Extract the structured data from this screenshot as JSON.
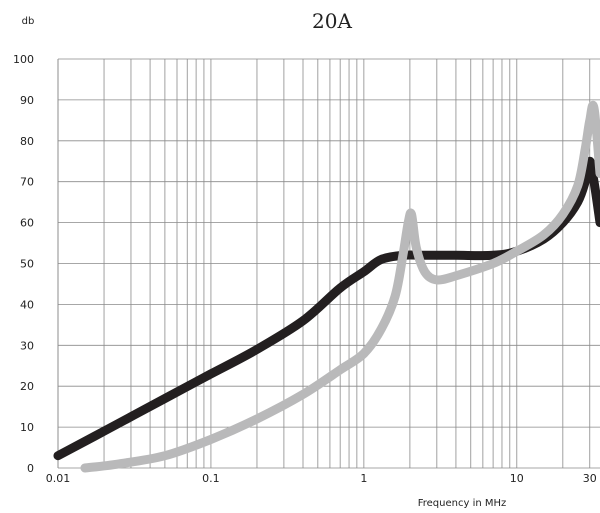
{
  "chart_data": {
    "type": "line",
    "title": "20A",
    "ylabel": "db",
    "xlabel": "Frequency in MHz",
    "x_scale": "log",
    "xlim": [
      0.01,
      35
    ],
    "ylim": [
      0,
      100
    ],
    "grid": true,
    "x_tick_labels": [
      "0.01",
      "0.1",
      "1",
      "10",
      "30"
    ],
    "x_ticks": [
      0.01,
      0.1,
      1,
      10,
      30
    ],
    "y_ticks": [
      0,
      10,
      20,
      30,
      40,
      50,
      60,
      70,
      80,
      90,
      100
    ],
    "series": [
      {
        "color": "#231f20",
        "x": [
          0.01,
          0.02,
          0.05,
          0.1,
          0.2,
          0.4,
          0.7,
          1.0,
          1.3,
          1.8,
          2.5,
          4,
          7,
          10,
          15,
          20,
          25,
          28,
          30,
          32,
          35
        ],
        "y": [
          3,
          9,
          17,
          23,
          29,
          36,
          44,
          48,
          51,
          52,
          52,
          52,
          52,
          53,
          56,
          60,
          65,
          70,
          75,
          70,
          60
        ]
      },
      {
        "color": "#b9b9ba",
        "x": [
          0.015,
          0.025,
          0.05,
          0.1,
          0.2,
          0.4,
          0.7,
          1.0,
          1.3,
          1.6,
          1.8,
          1.95,
          2.05,
          2.2,
          2.5,
          3,
          4,
          7,
          10,
          15,
          20,
          25,
          28,
          30,
          32,
          35
        ],
        "y": [
          0,
          1,
          3,
          7,
          12,
          18,
          24,
          28,
          34,
          42,
          52,
          60,
          62,
          54,
          48,
          46,
          47,
          50,
          53,
          57,
          62,
          69,
          78,
          85,
          88,
          72
        ]
      }
    ]
  }
}
